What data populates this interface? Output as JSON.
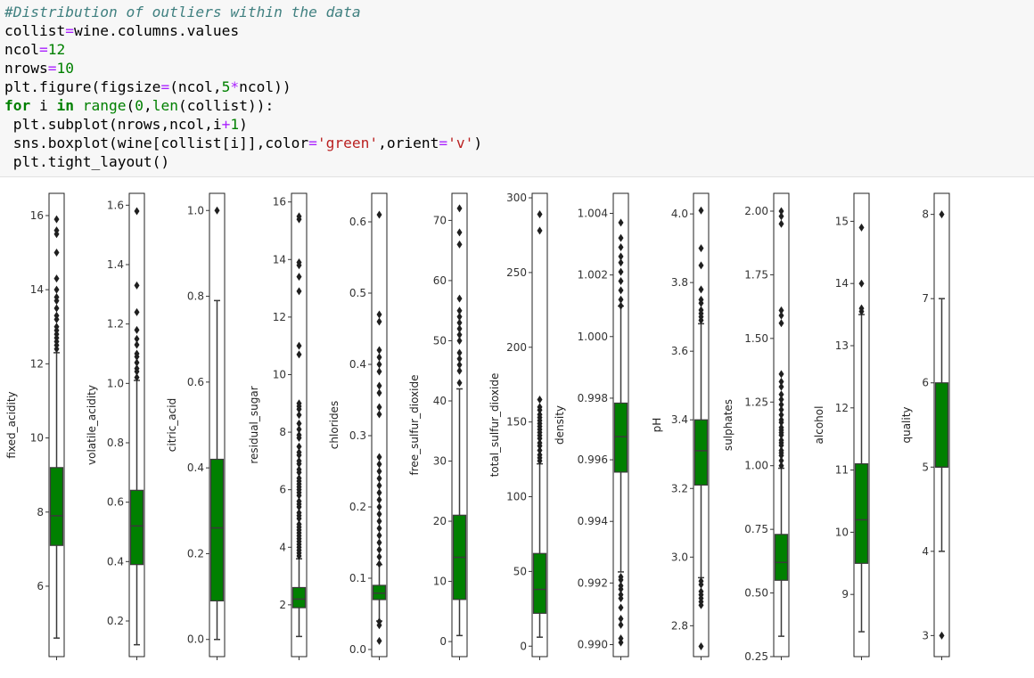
{
  "code": {
    "lines": [
      [
        {
          "t": "#Distribution of outliers within the data",
          "c": "cm"
        }
      ],
      [
        {
          "t": "collist"
        },
        {
          "t": "=",
          "c": "op"
        },
        {
          "t": "wine.columns.values"
        }
      ],
      [
        {
          "t": "ncol"
        },
        {
          "t": "=",
          "c": "op"
        },
        {
          "t": "12",
          "c": "nm"
        }
      ],
      [
        {
          "t": "nrows"
        },
        {
          "t": "=",
          "c": "op"
        },
        {
          "t": "10",
          "c": "nm"
        }
      ],
      [
        {
          "t": "plt.figure(figsize"
        },
        {
          "t": "=",
          "c": "op"
        },
        {
          "t": "(ncol,"
        },
        {
          "t": "5",
          "c": "nm"
        },
        {
          "t": "*",
          "c": "op"
        },
        {
          "t": "ncol))"
        }
      ],
      [
        {
          "t": "for",
          "c": "kw"
        },
        {
          "t": " i "
        },
        {
          "t": "in",
          "c": "kw"
        },
        {
          "t": " "
        },
        {
          "t": "range",
          "c": "fn"
        },
        {
          "t": "("
        },
        {
          "t": "0",
          "c": "nm"
        },
        {
          "t": ","
        },
        {
          "t": "len",
          "c": "fn"
        },
        {
          "t": "(collist)):"
        }
      ],
      [
        {
          "t": " plt.subplot(nrows,ncol,i"
        },
        {
          "t": "+",
          "c": "op"
        },
        {
          "t": "1",
          "c": "nm"
        },
        {
          "t": ")"
        }
      ],
      [
        {
          "t": " sns.boxplot(wine[collist[i]],color"
        },
        {
          "t": "=",
          "c": "op"
        },
        {
          "t": "'green'",
          "c": "st"
        },
        {
          "t": ",orient"
        },
        {
          "t": "=",
          "c": "op"
        },
        {
          "t": "'v'",
          "c": "st"
        },
        {
          "t": ")"
        }
      ],
      [
        {
          "t": " plt.tight_layout()"
        }
      ]
    ]
  },
  "colors": {
    "box": "#008000",
    "outlier": "#1f1f1f",
    "frame": "#222222"
  },
  "chart_data": [
    {
      "type": "box",
      "ylabel": "fixed_acidity",
      "ylim": [
        4.1,
        16.6
      ],
      "ticks": [
        6,
        8,
        10,
        12,
        14,
        16
      ],
      "tick_labels": [
        "6",
        "8",
        "10",
        "12",
        "14",
        "16"
      ],
      "whisker_low": 4.6,
      "q1": 7.1,
      "median": 7.9,
      "q3": 9.2,
      "whisker_high": 12.3,
      "outliers": [
        12.4,
        12.5,
        12.6,
        12.7,
        12.8,
        12.9,
        13.0,
        13.2,
        13.3,
        13.5,
        13.7,
        13.8,
        14.0,
        14.3,
        15.0,
        15.5,
        15.6,
        15.9
      ]
    },
    {
      "type": "box",
      "ylabel": "volatile_acidity",
      "ylim": [
        0.08,
        1.64
      ],
      "ticks": [
        0.2,
        0.4,
        0.6,
        0.8,
        1.0,
        1.2,
        1.4,
        1.6
      ],
      "tick_labels": [
        "0.2",
        "0.4",
        "0.6",
        "0.8",
        "1.0",
        "1.2",
        "1.4",
        "1.6"
      ],
      "whisker_low": 0.12,
      "q1": 0.39,
      "median": 0.52,
      "q3": 0.64,
      "whisker_high": 1.01,
      "outliers": [
        1.02,
        1.04,
        1.05,
        1.07,
        1.09,
        1.1,
        1.13,
        1.15,
        1.18,
        1.24,
        1.33,
        1.58
      ]
    },
    {
      "type": "box",
      "ylabel": "citric_acid",
      "ylim": [
        -0.04,
        1.04
      ],
      "ticks": [
        0.0,
        0.2,
        0.4,
        0.6,
        0.8,
        1.0
      ],
      "tick_labels": [
        "0.0",
        "0.2",
        "0.4",
        "0.6",
        "0.8",
        "1.0"
      ],
      "whisker_low": 0.0,
      "q1": 0.09,
      "median": 0.26,
      "q3": 0.42,
      "whisker_high": 0.79,
      "outliers": [
        1.0
      ]
    },
    {
      "type": "box",
      "ylabel": "residual_sugar",
      "ylim": [
        0.2,
        16.3
      ],
      "ticks": [
        2,
        4,
        6,
        8,
        10,
        12,
        14,
        16
      ],
      "tick_labels": [
        "2",
        "4",
        "6",
        "8",
        "10",
        "12",
        "14",
        "16"
      ],
      "whisker_low": 0.9,
      "q1": 1.9,
      "median": 2.2,
      "q3": 2.6,
      "whisker_high": 3.6,
      "outliers": [
        3.7,
        3.8,
        3.9,
        4.0,
        4.1,
        4.2,
        4.3,
        4.4,
        4.5,
        4.6,
        4.7,
        4.8,
        5.0,
        5.1,
        5.2,
        5.4,
        5.5,
        5.6,
        5.8,
        5.9,
        6.0,
        6.1,
        6.2,
        6.3,
        6.4,
        6.6,
        6.7,
        6.9,
        7.0,
        7.2,
        7.3,
        7.5,
        7.8,
        7.9,
        8.1,
        8.3,
        8.6,
        8.8,
        8.9,
        9.0,
        10.7,
        11.0,
        12.9,
        13.4,
        13.8,
        13.9,
        15.4,
        15.5
      ]
    },
    {
      "type": "box",
      "ylabel": "chlorides",
      "ylim": [
        -0.01,
        0.64
      ],
      "ticks": [
        0.0,
        0.1,
        0.2,
        0.3,
        0.4,
        0.5,
        0.6
      ],
      "tick_labels": [
        "0.0",
        "0.1",
        "0.2",
        "0.3",
        "0.4",
        "0.5",
        "0.6"
      ],
      "whisker_low": 0.04,
      "q1": 0.07,
      "median": 0.079,
      "q3": 0.09,
      "whisker_high": 0.119,
      "outliers": [
        0.012,
        0.034,
        0.039,
        0.12,
        0.13,
        0.14,
        0.15,
        0.16,
        0.17,
        0.18,
        0.19,
        0.2,
        0.21,
        0.22,
        0.23,
        0.24,
        0.25,
        0.26,
        0.27,
        0.33,
        0.34,
        0.36,
        0.37,
        0.39,
        0.4,
        0.41,
        0.42,
        0.46,
        0.47,
        0.61
      ]
    },
    {
      "type": "box",
      "ylabel": "free_sulfur_dioxide",
      "ylim": [
        -2.5,
        74.5
      ],
      "ticks": [
        0,
        10,
        20,
        30,
        40,
        50,
        60,
        70
      ],
      "tick_labels": [
        "0",
        "10",
        "20",
        "30",
        "40",
        "50",
        "60",
        "70"
      ],
      "whisker_low": 1,
      "q1": 7,
      "median": 14,
      "q3": 21,
      "whisker_high": 42,
      "outliers": [
        43,
        45,
        46,
        47,
        48,
        50,
        51,
        52,
        53,
        54,
        55,
        57,
        66,
        68,
        72
      ]
    },
    {
      "type": "box",
      "ylabel": "total_sulfur_dioxide",
      "ylim": [
        -7,
        303
      ],
      "ticks": [
        0,
        50,
        100,
        150,
        200,
        250,
        300
      ],
      "tick_labels": [
        "0",
        "50",
        "100",
        "150",
        "200",
        "250",
        "300"
      ],
      "whisker_low": 6,
      "q1": 22,
      "median": 38,
      "q3": 62,
      "whisker_high": 122,
      "outliers": [
        124,
        126,
        128,
        131,
        134,
        136,
        139,
        141,
        143,
        145,
        147,
        149,
        151,
        153,
        155,
        158,
        160,
        165,
        278,
        289
      ]
    },
    {
      "type": "box",
      "ylabel": "density",
      "ylim": [
        0.98961,
        1.00465
      ],
      "ticks": [
        0.99,
        0.992,
        0.994,
        0.996,
        0.998,
        1.0,
        1.002,
        1.004
      ],
      "tick_labels": [
        "0.990",
        "0.992",
        "0.994",
        "0.996",
        "0.998",
        "1.000",
        "1.002",
        "1.004"
      ],
      "whisker_low": 0.99236,
      "q1": 0.9956,
      "median": 0.99675,
      "q3": 0.99784,
      "whisker_high": 1.00099,
      "outliers": [
        0.99007,
        0.9902,
        0.99064,
        0.99084,
        0.9912,
        0.9915,
        0.99162,
        0.9918,
        0.99191,
        0.9921,
        0.9922,
        1.001,
        1.0012,
        1.0015,
        1.0018,
        1.0021,
        1.0024,
        1.0026,
        1.0029,
        1.0032,
        1.0037
      ]
    },
    {
      "type": "box",
      "ylabel": "pH",
      "ylim": [
        2.71,
        4.06
      ],
      "ticks": [
        2.8,
        3.0,
        3.2,
        3.4,
        3.6,
        3.8,
        4.0
      ],
      "tick_labels": [
        "2.8",
        "3.0",
        "3.2",
        "3.4",
        "3.6",
        "3.8",
        "4.0"
      ],
      "whisker_low": 2.94,
      "q1": 3.21,
      "median": 3.31,
      "q3": 3.4,
      "whisker_high": 3.68,
      "outliers": [
        2.74,
        2.86,
        2.87,
        2.88,
        2.89,
        2.9,
        2.92,
        2.93,
        3.69,
        3.7,
        3.71,
        3.72,
        3.74,
        3.75,
        3.78,
        3.85,
        3.9,
        4.01
      ]
    },
    {
      "type": "box",
      "ylabel": "sulphates",
      "ylim": [
        0.25,
        2.07
      ],
      "ticks": [
        0.25,
        0.5,
        0.75,
        1.0,
        1.25,
        1.5,
        1.75,
        2.0
      ],
      "tick_labels": [
        "0.25",
        "0.50",
        "0.75",
        "1.00",
        "1.25",
        "1.50",
        "1.75",
        "2.00"
      ],
      "whisker_low": 0.33,
      "q1": 0.55,
      "median": 0.62,
      "q3": 0.73,
      "whisker_high": 0.99,
      "outliers": [
        1.0,
        1.02,
        1.04,
        1.05,
        1.06,
        1.08,
        1.09,
        1.1,
        1.12,
        1.13,
        1.14,
        1.15,
        1.17,
        1.18,
        1.2,
        1.22,
        1.24,
        1.26,
        1.28,
        1.31,
        1.33,
        1.36,
        1.56,
        1.59,
        1.61,
        1.95,
        1.98,
        2.0
      ]
    },
    {
      "type": "box",
      "ylabel": "alcohol",
      "ylim": [
        8.0,
        15.45
      ],
      "ticks": [
        9,
        10,
        11,
        12,
        13,
        14,
        15
      ],
      "tick_labels": [
        "9",
        "10",
        "11",
        "12",
        "13",
        "14",
        "15"
      ],
      "whisker_low": 8.4,
      "q1": 9.5,
      "median": 10.2,
      "q3": 11.1,
      "whisker_high": 13.5,
      "outliers": [
        13.55,
        13.6,
        14.0,
        14.9
      ]
    },
    {
      "type": "box",
      "ylabel": "quality",
      "ylim": [
        2.75,
        8.25
      ],
      "ticks": [
        3,
        4,
        5,
        6,
        7,
        8
      ],
      "tick_labels": [
        "3",
        "4",
        "5",
        "6",
        "7",
        "8"
      ],
      "whisker_low": 4,
      "q1": 5,
      "median": 5,
      "q3": 6,
      "whisker_high": 7,
      "outliers": [
        3,
        8
      ]
    }
  ]
}
